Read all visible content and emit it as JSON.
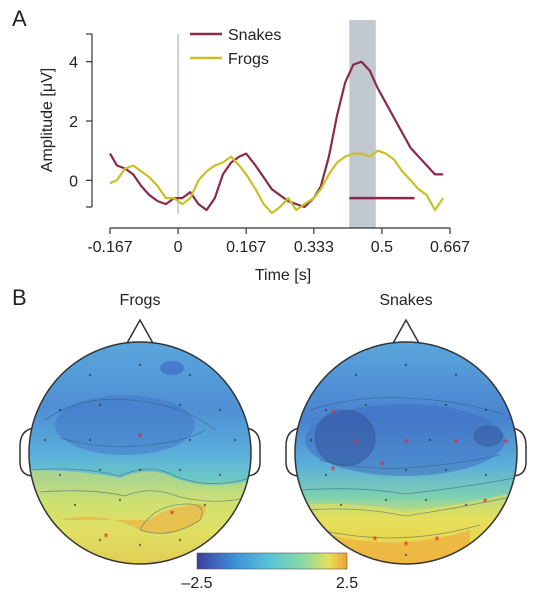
{
  "chart_data": [
    {
      "panel": "A",
      "type": "line",
      "xlabel": "Time [s]",
      "ylabel": "Amplitude [μV]",
      "xlim": [
        -0.167,
        0.667
      ],
      "ylim": [
        -1.0,
        5.0
      ],
      "xticks": [
        -0.167,
        0,
        0.167,
        0.333,
        0.5,
        0.667
      ],
      "xtick_labels": [
        "-0.167",
        "0",
        "0.167",
        "0.333",
        "0.5",
        "0.667"
      ],
      "yticks": [
        0,
        2,
        4
      ],
      "ytick_labels": [
        "0",
        "2",
        "4"
      ],
      "legend_position": "top",
      "onset_marker_x": 0,
      "highlight_window": [
        0.42,
        0.485
      ],
      "significance_bar": {
        "x": [
          0.42,
          0.58
        ],
        "y": -0.6,
        "color": "#8b2a48"
      },
      "series": [
        {
          "name": "Snakes",
          "color": "#8b2a48",
          "x": [
            -0.167,
            -0.15,
            -0.13,
            -0.11,
            -0.09,
            -0.07,
            -0.05,
            -0.03,
            -0.01,
            0.01,
            0.03,
            0.05,
            0.07,
            0.09,
            0.11,
            0.13,
            0.15,
            0.167,
            0.19,
            0.21,
            0.23,
            0.25,
            0.27,
            0.29,
            0.31,
            0.333,
            0.35,
            0.37,
            0.39,
            0.41,
            0.43,
            0.45,
            0.47,
            0.49,
            0.51,
            0.53,
            0.55,
            0.57,
            0.59,
            0.61,
            0.63,
            0.65
          ],
          "y": [
            0.9,
            0.5,
            0.4,
            0.2,
            -0.2,
            -0.5,
            -0.7,
            -0.8,
            -0.6,
            -0.6,
            -0.4,
            -0.8,
            -1.0,
            -0.6,
            0.2,
            0.6,
            0.8,
            0.9,
            0.5,
            0.1,
            -0.3,
            -0.5,
            -0.7,
            -0.8,
            -0.9,
            -0.6,
            -0.2,
            0.8,
            2.2,
            3.3,
            3.9,
            4.0,
            3.7,
            3.1,
            2.6,
            2.1,
            1.6,
            1.1,
            0.8,
            0.5,
            0.2,
            0.2
          ]
        },
        {
          "name": "Frogs",
          "color": "#c9c026",
          "x": [
            -0.167,
            -0.15,
            -0.13,
            -0.11,
            -0.09,
            -0.07,
            -0.05,
            -0.03,
            -0.01,
            0.01,
            0.03,
            0.05,
            0.07,
            0.09,
            0.11,
            0.13,
            0.15,
            0.167,
            0.19,
            0.21,
            0.23,
            0.25,
            0.27,
            0.29,
            0.31,
            0.333,
            0.35,
            0.37,
            0.39,
            0.41,
            0.43,
            0.45,
            0.47,
            0.49,
            0.51,
            0.53,
            0.55,
            0.57,
            0.59,
            0.61,
            0.63,
            0.65
          ],
          "y": [
            -0.1,
            0.0,
            0.4,
            0.5,
            0.3,
            0.1,
            -0.2,
            -0.6,
            -0.6,
            -0.8,
            -0.6,
            0.0,
            0.3,
            0.5,
            0.6,
            0.8,
            0.5,
            0.2,
            -0.3,
            -0.8,
            -1.1,
            -0.9,
            -0.6,
            -1.0,
            -0.8,
            -0.6,
            -0.3,
            0.2,
            0.6,
            0.8,
            0.9,
            0.9,
            0.8,
            1.0,
            0.9,
            0.7,
            0.3,
            0.0,
            -0.3,
            -0.5,
            -1.0,
            -0.6
          ]
        }
      ]
    },
    {
      "panel": "B",
      "type": "heatmap",
      "subplot_titles": [
        "Frogs",
        "Snakes"
      ],
      "colorbar": {
        "min": -2.5,
        "max": 2.5,
        "min_label": "–2.5",
        "max_label": "2.5"
      },
      "colormap": [
        "#3b3ea0",
        "#3f8fd8",
        "#5cc7d6",
        "#8ed9a0",
        "#e8e15a",
        "#f0a030"
      ],
      "marker_color": "#e0283c"
    }
  ]
}
